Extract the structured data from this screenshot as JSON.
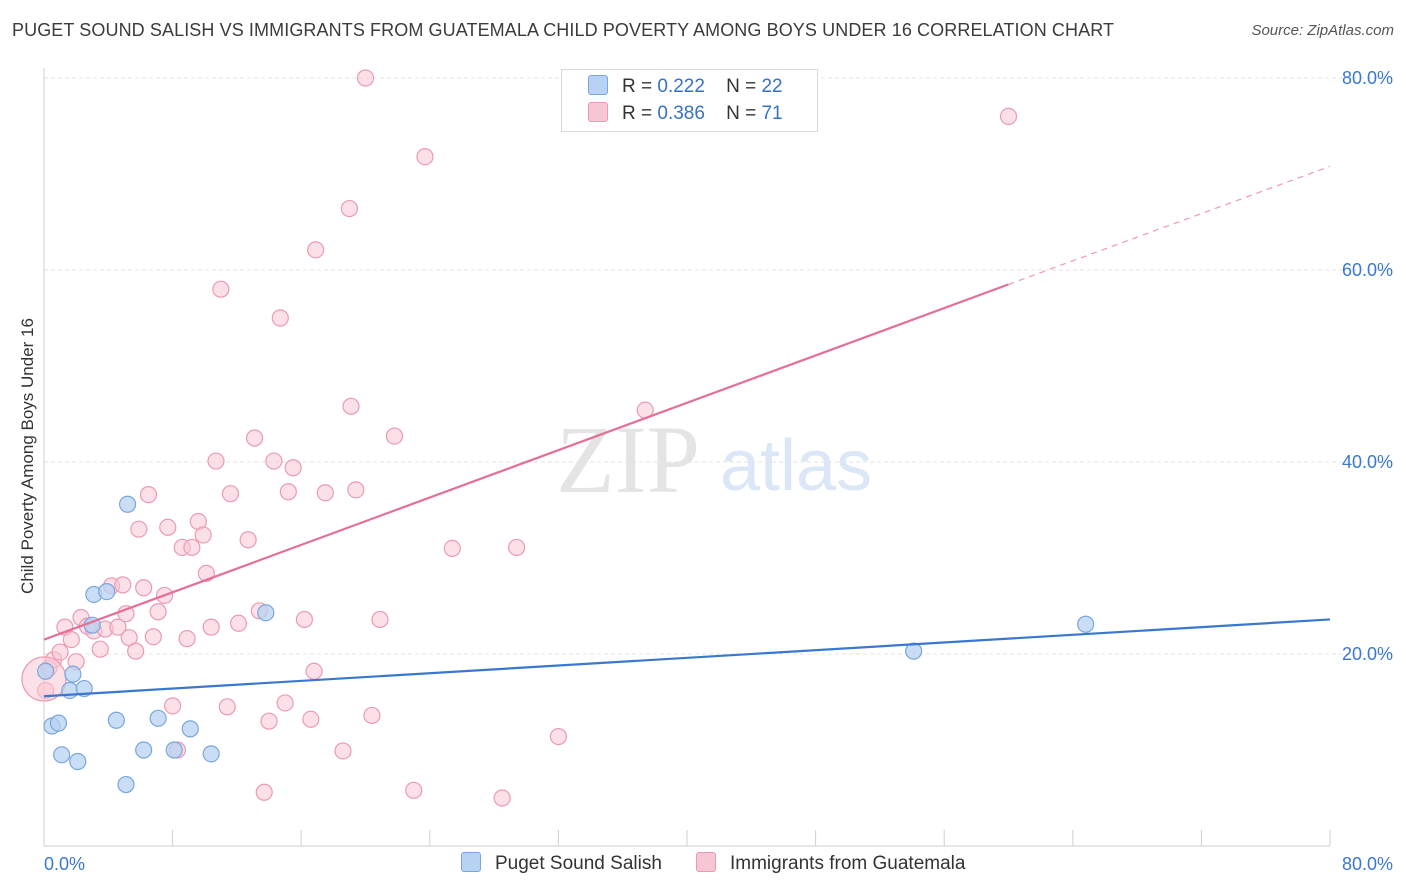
{
  "title": "PUGET SOUND SALISH VS IMMIGRANTS FROM GUATEMALA CHILD POVERTY AMONG BOYS UNDER 16 CORRELATION CHART",
  "source": "Source: ZipAtlas.com",
  "watermark": {
    "zip": "ZIP",
    "atlas": "atlas"
  },
  "legend": {
    "series1": {
      "r_label": "R =",
      "r_value": "0.222",
      "n_label": "N =",
      "n_value": "22"
    },
    "series2": {
      "r_label": "R =",
      "r_value": "0.386",
      "n_label": "N =",
      "n_value": "71"
    }
  },
  "bottom_legend": {
    "series1": "Puget Sound Salish",
    "series2": "Immigrants from Guatemala"
  },
  "colors": {
    "blue_fill": "#b7d2f2",
    "blue_stroke": "#7aa6de",
    "blue_line": "#3a78d0",
    "pink_fill": "#f7c6d4",
    "pink_stroke": "#eb9ab3",
    "pink_line": "#e46e97",
    "tick_text": "#3a78d0",
    "grid": "#e3e3e3"
  },
  "chart_data": {
    "type": "scatter",
    "title": "PUGET SOUND SALISH VS IMMIGRANTS FROM GUATEMALA CHILD POVERTY AMONG BOYS UNDER 16 CORRELATION CHART",
    "xlabel": "",
    "ylabel": "Child Poverty Among Boys Under 16",
    "xlim": [
      0,
      80
    ],
    "ylim": [
      0,
      80
    ],
    "x_tick_labels": [
      "0.0%",
      "80.0%"
    ],
    "y_ticks": [
      20,
      40,
      60,
      80
    ],
    "y_tick_labels": [
      "20.0%",
      "40.0%",
      "60.0%",
      "80.0%"
    ],
    "grid": true,
    "legend_position": "top-center",
    "series": [
      {
        "name": "Puget Sound Salish",
        "r": 0.222,
        "n": 22,
        "trend": {
          "x": [
            0,
            80
          ],
          "y": [
            15.6,
            23.6
          ]
        },
        "points": [
          [
            0.1,
            18.2
          ],
          [
            0.5,
            12.5
          ],
          [
            0.9,
            12.8
          ],
          [
            1.1,
            9.5
          ],
          [
            1.6,
            16.2
          ],
          [
            1.8,
            17.9
          ],
          [
            2.1,
            8.8
          ],
          [
            2.5,
            16.4
          ],
          [
            3.0,
            23.0
          ],
          [
            3.1,
            26.2
          ],
          [
            3.9,
            26.5
          ],
          [
            4.5,
            13.1
          ],
          [
            5.2,
            35.6
          ],
          [
            5.1,
            6.4
          ],
          [
            6.2,
            10.0
          ],
          [
            7.1,
            13.3
          ],
          [
            8.1,
            10.0
          ],
          [
            9.1,
            12.2
          ],
          [
            10.4,
            9.6
          ],
          [
            13.8,
            24.3
          ],
          [
            54.1,
            20.3
          ],
          [
            64.8,
            23.1
          ]
        ]
      },
      {
        "name": "Immigrants from Guatemala",
        "r": 0.386,
        "n": 71,
        "trend": {
          "x": [
            0,
            60
          ],
          "y": [
            21.5,
            58.5
          ]
        },
        "trend_dashed": {
          "x": [
            60,
            80
          ],
          "y": [
            58.5,
            70.8
          ]
        },
        "points": [
          [
            0.1,
            16.2
          ],
          [
            0.3,
            18.5
          ],
          [
            0.6,
            19.4
          ],
          [
            1.0,
            20.2
          ],
          [
            1.3,
            22.8
          ],
          [
            1.7,
            21.5
          ],
          [
            2.0,
            19.2
          ],
          [
            2.3,
            23.8
          ],
          [
            2.7,
            22.9
          ],
          [
            3.1,
            22.4
          ],
          [
            3.5,
            20.5
          ],
          [
            3.8,
            22.6
          ],
          [
            4.2,
            27.1
          ],
          [
            4.6,
            22.8
          ],
          [
            4.9,
            27.2
          ],
          [
            5.1,
            24.2
          ],
          [
            5.3,
            21.7
          ],
          [
            5.7,
            20.3
          ],
          [
            5.9,
            33.0
          ],
          [
            6.2,
            26.9
          ],
          [
            6.5,
            36.6
          ],
          [
            6.8,
            21.8
          ],
          [
            7.1,
            24.4
          ],
          [
            7.5,
            26.1
          ],
          [
            7.7,
            33.2
          ],
          [
            8.0,
            14.6
          ],
          [
            8.3,
            10.0
          ],
          [
            8.6,
            31.1
          ],
          [
            8.9,
            21.6
          ],
          [
            9.2,
            31.1
          ],
          [
            9.6,
            33.8
          ],
          [
            9.9,
            32.4
          ],
          [
            10.1,
            28.4
          ],
          [
            10.4,
            22.8
          ],
          [
            10.7,
            40.1
          ],
          [
            11.0,
            58.0
          ],
          [
            11.4,
            14.5
          ],
          [
            11.6,
            36.7
          ],
          [
            12.1,
            23.2
          ],
          [
            12.7,
            31.9
          ],
          [
            13.1,
            42.5
          ],
          [
            13.4,
            24.5
          ],
          [
            13.7,
            5.6
          ],
          [
            14.0,
            13.0
          ],
          [
            14.3,
            40.1
          ],
          [
            14.7,
            55.0
          ],
          [
            15.0,
            14.9
          ],
          [
            15.2,
            36.9
          ],
          [
            15.5,
            39.4
          ],
          [
            16.2,
            23.6
          ],
          [
            16.6,
            13.2
          ],
          [
            16.8,
            18.2
          ],
          [
            16.9,
            62.1
          ],
          [
            17.5,
            36.8
          ],
          [
            18.6,
            9.9
          ],
          [
            19.0,
            66.4
          ],
          [
            19.1,
            45.8
          ],
          [
            19.4,
            37.1
          ],
          [
            20.0,
            80.0
          ],
          [
            20.4,
            13.6
          ],
          [
            20.9,
            23.6
          ],
          [
            21.8,
            42.7
          ],
          [
            23.0,
            5.8
          ],
          [
            23.7,
            71.8
          ],
          [
            25.4,
            31.0
          ],
          [
            28.5,
            5.0
          ],
          [
            29.4,
            31.1
          ],
          [
            32.0,
            11.4
          ],
          [
            37.4,
            45.4
          ],
          [
            60.0,
            76.0
          ],
          [
            0.0,
            17.4
          ]
        ]
      }
    ]
  }
}
